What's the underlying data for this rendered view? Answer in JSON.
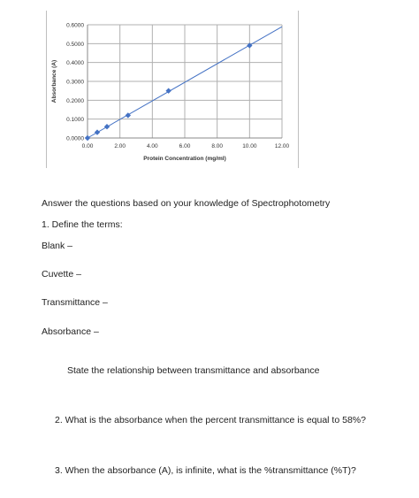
{
  "chart_data": {
    "type": "scatter",
    "title": "",
    "xlabel": "Protein Concentration (mg/ml)",
    "ylabel": "Absorbance (A)",
    "xlim": [
      0,
      12
    ],
    "ylim": [
      0,
      0.6
    ],
    "x_ticks": [
      "0.00",
      "2.00",
      "4.00",
      "6.00",
      "8.00",
      "10.00",
      "12.00"
    ],
    "y_ticks": [
      "0.0000",
      "0.1000",
      "0.2000",
      "0.3000",
      "0.4000",
      "0.5000",
      "0.6000"
    ],
    "grid": true,
    "legend": "none",
    "series": [
      {
        "x": [
          0,
          0.6,
          1.2,
          2.5,
          5.0,
          10.0
        ],
        "y": [
          0.0,
          0.03,
          0.06,
          0.12,
          0.25,
          0.49
        ],
        "marker": "diamond",
        "color": "#4472c4"
      }
    ],
    "trendline": {
      "x": [
        0,
        12
      ],
      "y": [
        0,
        0.59
      ],
      "color": "#4472c4"
    }
  },
  "document": {
    "intro": "Answer the questions based on your knowledge of Spectrophotometry",
    "q1": "1.   Define the terms:",
    "blank": "Blank –",
    "cuvette": "Cuvette –",
    "transmittance": "Transmittance –",
    "absorbance": "Absorbance –",
    "relationship": "State the relationship between transmittance and absorbance",
    "q2": "2.   What is the absorbance when the percent transmittance is equal to 58%?",
    "q3": "3.   When the absorbance (A), is infinite, what is the %transmittance (%T)?"
  }
}
